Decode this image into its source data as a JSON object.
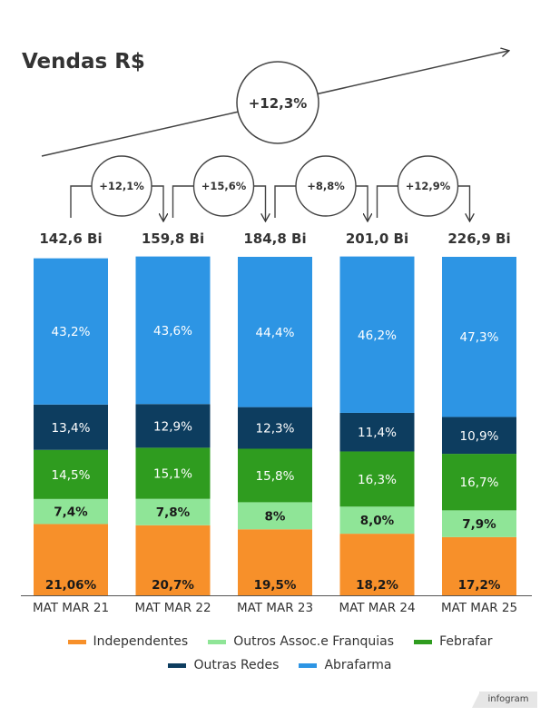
{
  "title": "Vendas R$",
  "overall_growth": "+12,3%",
  "brand": "infogram",
  "colors": {
    "Independentes": "#f7902a",
    "Outros Assoc.e Franquias": "#8fe597",
    "Febrafar": "#2f9c1f",
    "Outras Redes": "#0d3d5f",
    "Abrafarma": "#2d95e4"
  },
  "chart_data": {
    "type": "bar",
    "stacked": true,
    "categories": [
      "MAT MAR 21",
      "MAT MAR 22",
      "MAT MAR 23",
      "MAT MAR 24",
      "MAT MAR 25"
    ],
    "totals": [
      "142,6 Bi",
      "159,8 Bi",
      "184,8 Bi",
      "201,0 Bi",
      "226,9 Bi"
    ],
    "growth": [
      "+12,1%",
      "+15,6%",
      "+8,8%",
      "+12,9%"
    ],
    "ylim": [
      0,
      100
    ],
    "series": [
      {
        "name": "Independentes",
        "values": [
          21.06,
          20.7,
          19.5,
          18.2,
          17.2
        ],
        "labels": [
          "21,06%",
          "20,7%",
          "19,5%",
          "18,2%",
          "17,2%"
        ]
      },
      {
        "name": "Outros Assoc.e Franquias",
        "values": [
          7.4,
          7.8,
          8,
          8.0,
          7.9
        ],
        "labels": [
          "7,4%",
          "7,8%",
          "8%",
          "8,0%",
          "7,9%"
        ]
      },
      {
        "name": "Febrafar",
        "values": [
          14.5,
          15.1,
          15.8,
          16.3,
          16.7
        ],
        "labels": [
          "14,5%",
          "15,1%",
          "15,8%",
          "16,3%",
          "16,7%"
        ]
      },
      {
        "name": "Outras Redes",
        "values": [
          13.4,
          12.9,
          12.3,
          11.4,
          10.9
        ],
        "labels": [
          "13,4%",
          "12,9%",
          "12,3%",
          "11,4%",
          "10,9%"
        ]
      },
      {
        "name": "Abrafarma",
        "values": [
          43.2,
          43.6,
          44.4,
          46.2,
          47.3
        ],
        "labels": [
          "43,2%",
          "43,6%",
          "44,4%",
          "46,2%",
          "47,3%"
        ]
      }
    ],
    "legend": [
      "Independentes",
      "Outros Assoc.e Franquias",
      "Febrafar",
      "Outras Redes",
      "Abrafarma"
    ],
    "legend_position": "bottom"
  }
}
